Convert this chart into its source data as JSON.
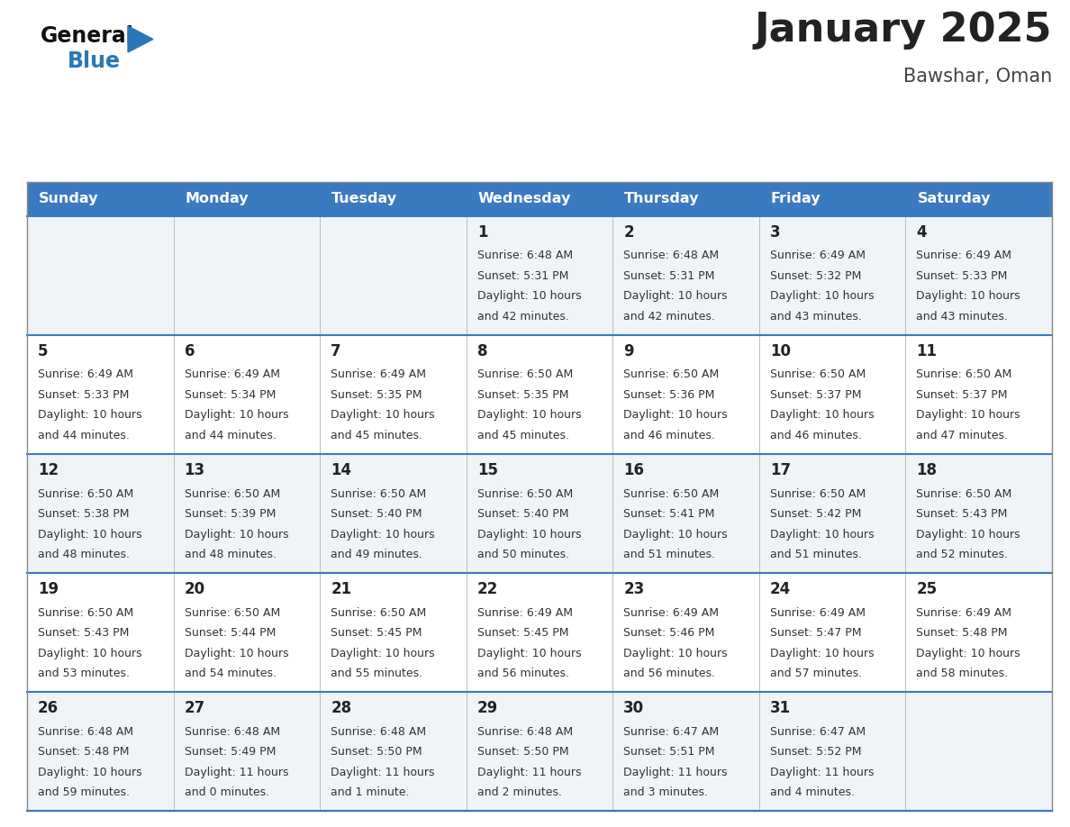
{
  "title": "January 2025",
  "subtitle": "Bawshar, Oman",
  "days_of_week": [
    "Sunday",
    "Monday",
    "Tuesday",
    "Wednesday",
    "Thursday",
    "Friday",
    "Saturday"
  ],
  "header_bg_color": "#3a7abf",
  "header_text_color": "#ffffff",
  "cell_bg_color": "#f0f4f8",
  "cell_bg_white": "#ffffff",
  "day_number_color": "#222222",
  "cell_text_color": "#333333",
  "title_color": "#222222",
  "subtitle_color": "#444444",
  "logo_general_color": "#111111",
  "logo_blue_color": "#2878b8",
  "row_border_color": "#3a7abf",
  "col_border_color": "#bbbbbb",
  "outer_border_color": "#888888",
  "calendar_data": [
    [
      null,
      null,
      null,
      {
        "day": 1,
        "sunrise": "6:48 AM",
        "sunset": "5:31 PM",
        "daylight": "10 hours and 42 minutes"
      },
      {
        "day": 2,
        "sunrise": "6:48 AM",
        "sunset": "5:31 PM",
        "daylight": "10 hours and 42 minutes"
      },
      {
        "day": 3,
        "sunrise": "6:49 AM",
        "sunset": "5:32 PM",
        "daylight": "10 hours and 43 minutes"
      },
      {
        "day": 4,
        "sunrise": "6:49 AM",
        "sunset": "5:33 PM",
        "daylight": "10 hours and 43 minutes"
      }
    ],
    [
      {
        "day": 5,
        "sunrise": "6:49 AM",
        "sunset": "5:33 PM",
        "daylight": "10 hours and 44 minutes"
      },
      {
        "day": 6,
        "sunrise": "6:49 AM",
        "sunset": "5:34 PM",
        "daylight": "10 hours and 44 minutes"
      },
      {
        "day": 7,
        "sunrise": "6:49 AM",
        "sunset": "5:35 PM",
        "daylight": "10 hours and 45 minutes"
      },
      {
        "day": 8,
        "sunrise": "6:50 AM",
        "sunset": "5:35 PM",
        "daylight": "10 hours and 45 minutes"
      },
      {
        "day": 9,
        "sunrise": "6:50 AM",
        "sunset": "5:36 PM",
        "daylight": "10 hours and 46 minutes"
      },
      {
        "day": 10,
        "sunrise": "6:50 AM",
        "sunset": "5:37 PM",
        "daylight": "10 hours and 46 minutes"
      },
      {
        "day": 11,
        "sunrise": "6:50 AM",
        "sunset": "5:37 PM",
        "daylight": "10 hours and 47 minutes"
      }
    ],
    [
      {
        "day": 12,
        "sunrise": "6:50 AM",
        "sunset": "5:38 PM",
        "daylight": "10 hours and 48 minutes"
      },
      {
        "day": 13,
        "sunrise": "6:50 AM",
        "sunset": "5:39 PM",
        "daylight": "10 hours and 48 minutes"
      },
      {
        "day": 14,
        "sunrise": "6:50 AM",
        "sunset": "5:40 PM",
        "daylight": "10 hours and 49 minutes"
      },
      {
        "day": 15,
        "sunrise": "6:50 AM",
        "sunset": "5:40 PM",
        "daylight": "10 hours and 50 minutes"
      },
      {
        "day": 16,
        "sunrise": "6:50 AM",
        "sunset": "5:41 PM",
        "daylight": "10 hours and 51 minutes"
      },
      {
        "day": 17,
        "sunrise": "6:50 AM",
        "sunset": "5:42 PM",
        "daylight": "10 hours and 51 minutes"
      },
      {
        "day": 18,
        "sunrise": "6:50 AM",
        "sunset": "5:43 PM",
        "daylight": "10 hours and 52 minutes"
      }
    ],
    [
      {
        "day": 19,
        "sunrise": "6:50 AM",
        "sunset": "5:43 PM",
        "daylight": "10 hours and 53 minutes"
      },
      {
        "day": 20,
        "sunrise": "6:50 AM",
        "sunset": "5:44 PM",
        "daylight": "10 hours and 54 minutes"
      },
      {
        "day": 21,
        "sunrise": "6:50 AM",
        "sunset": "5:45 PM",
        "daylight": "10 hours and 55 minutes"
      },
      {
        "day": 22,
        "sunrise": "6:49 AM",
        "sunset": "5:45 PM",
        "daylight": "10 hours and 56 minutes"
      },
      {
        "day": 23,
        "sunrise": "6:49 AM",
        "sunset": "5:46 PM",
        "daylight": "10 hours and 56 minutes"
      },
      {
        "day": 24,
        "sunrise": "6:49 AM",
        "sunset": "5:47 PM",
        "daylight": "10 hours and 57 minutes"
      },
      {
        "day": 25,
        "sunrise": "6:49 AM",
        "sunset": "5:48 PM",
        "daylight": "10 hours and 58 minutes"
      }
    ],
    [
      {
        "day": 26,
        "sunrise": "6:48 AM",
        "sunset": "5:48 PM",
        "daylight": "10 hours and 59 minutes"
      },
      {
        "day": 27,
        "sunrise": "6:48 AM",
        "sunset": "5:49 PM",
        "daylight": "11 hours and 0 minutes"
      },
      {
        "day": 28,
        "sunrise": "6:48 AM",
        "sunset": "5:50 PM",
        "daylight": "11 hours and 1 minute"
      },
      {
        "day": 29,
        "sunrise": "6:48 AM",
        "sunset": "5:50 PM",
        "daylight": "11 hours and 2 minutes"
      },
      {
        "day": 30,
        "sunrise": "6:47 AM",
        "sunset": "5:51 PM",
        "daylight": "11 hours and 3 minutes"
      },
      {
        "day": 31,
        "sunrise": "6:47 AM",
        "sunset": "5:52 PM",
        "daylight": "11 hours and 4 minutes"
      },
      null
    ]
  ]
}
